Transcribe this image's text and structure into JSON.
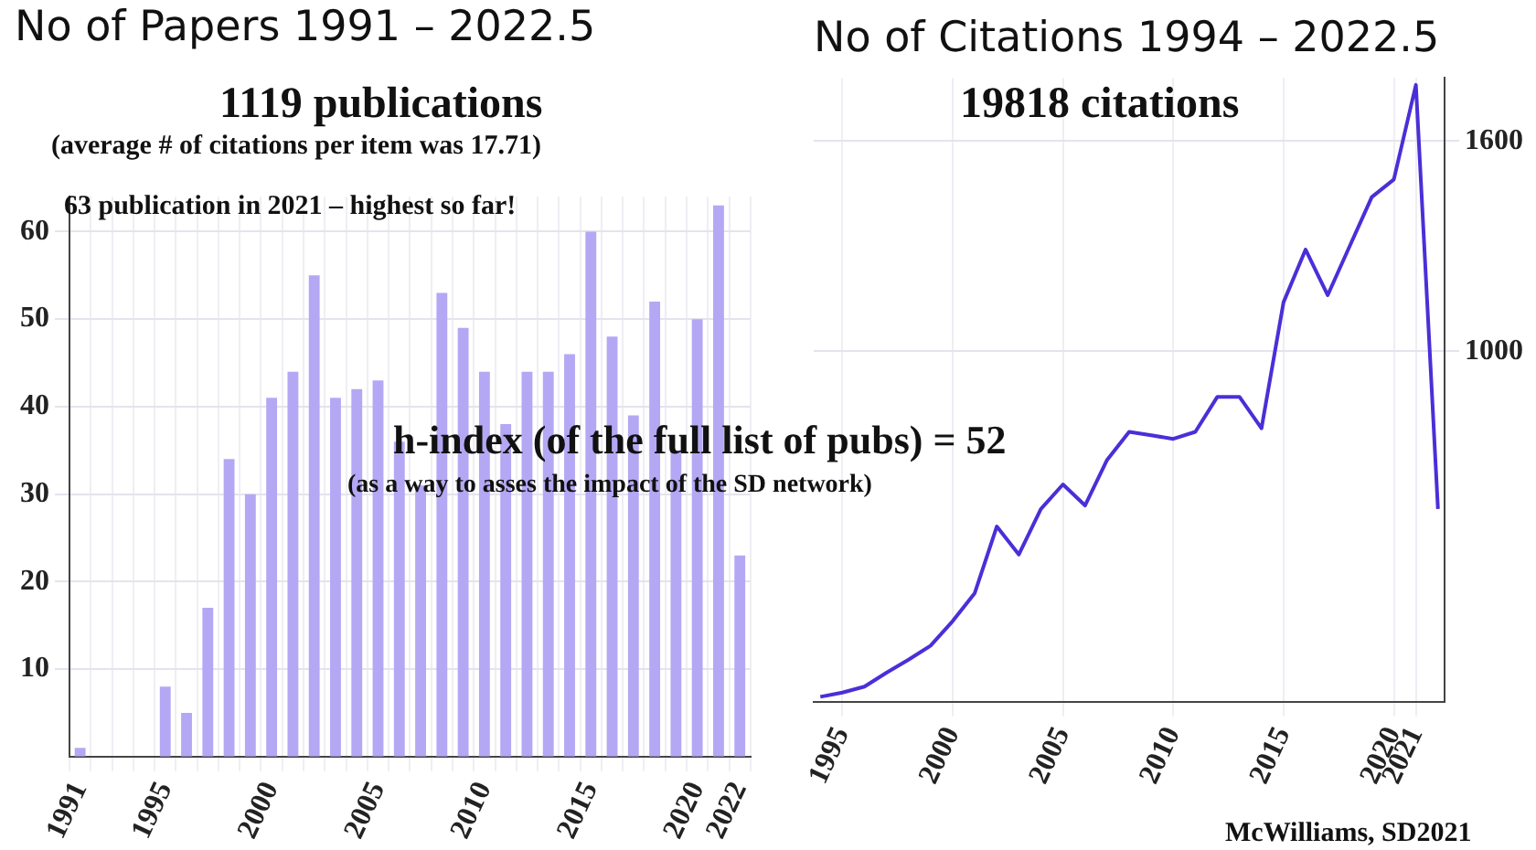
{
  "chart_data": [
    {
      "type": "bar",
      "title": "No of Papers 1991 – 2022.5",
      "subtitle": "1119 publications",
      "annotations": [
        "(average # of citations per item was 17.71)",
        "63 publication in 2021 – highest so far!",
        "h-index (of the full list of pubs) = 52",
        "(as a way to asses the impact of the SD network)"
      ],
      "categories": [
        "1991",
        null,
        null,
        null,
        "1995",
        null,
        null,
        null,
        null,
        "2000",
        null,
        null,
        null,
        null,
        "2005",
        null,
        null,
        null,
        null,
        "2010",
        null,
        null,
        null,
        null,
        "2015",
        null,
        null,
        null,
        null,
        "2020",
        null,
        "2022"
      ],
      "values": [
        1,
        0,
        0,
        0,
        8,
        5,
        17,
        34,
        30,
        41,
        44,
        55,
        41,
        42,
        43,
        36,
        31,
        53,
        49,
        44,
        38,
        44,
        44,
        46,
        60,
        48,
        39,
        52,
        35,
        50,
        63,
        23
      ],
      "color": "#b4a8f4",
      "ylim": [
        0,
        64
      ],
      "yticks": [
        10,
        20,
        30,
        40,
        50,
        60
      ],
      "grid": true
    },
    {
      "type": "line",
      "title": "No of Citations 1994 – 2022.5",
      "subtitle": "19818 citations",
      "annotations": [
        "McWilliams, SD2021"
      ],
      "x": [
        1994,
        1995,
        1996,
        1997,
        1998,
        1999,
        2000,
        2001,
        2002,
        2003,
        2004,
        2005,
        2006,
        2007,
        2008,
        2009,
        2010,
        2011,
        2012,
        2013,
        2014,
        2015,
        2016,
        2017,
        2018,
        2019,
        2020,
        2021,
        2022
      ],
      "values": [
        14,
        26,
        43,
        83,
        120,
        160,
        230,
        310,
        500,
        420,
        550,
        620,
        560,
        690,
        770,
        760,
        750,
        770,
        870,
        870,
        780,
        1140,
        1290,
        1160,
        1300,
        1440,
        1490,
        1760,
        550
      ],
      "color": "#4a2fd8",
      "xlim": [
        1993.7,
        2022.3
      ],
      "xticks": [
        1995,
        2000,
        2005,
        2010,
        2015,
        2020,
        2021
      ],
      "ylim": [
        0,
        1780
      ],
      "yticks": [
        1000,
        1600
      ],
      "grid": true,
      "marker": "none"
    }
  ]
}
